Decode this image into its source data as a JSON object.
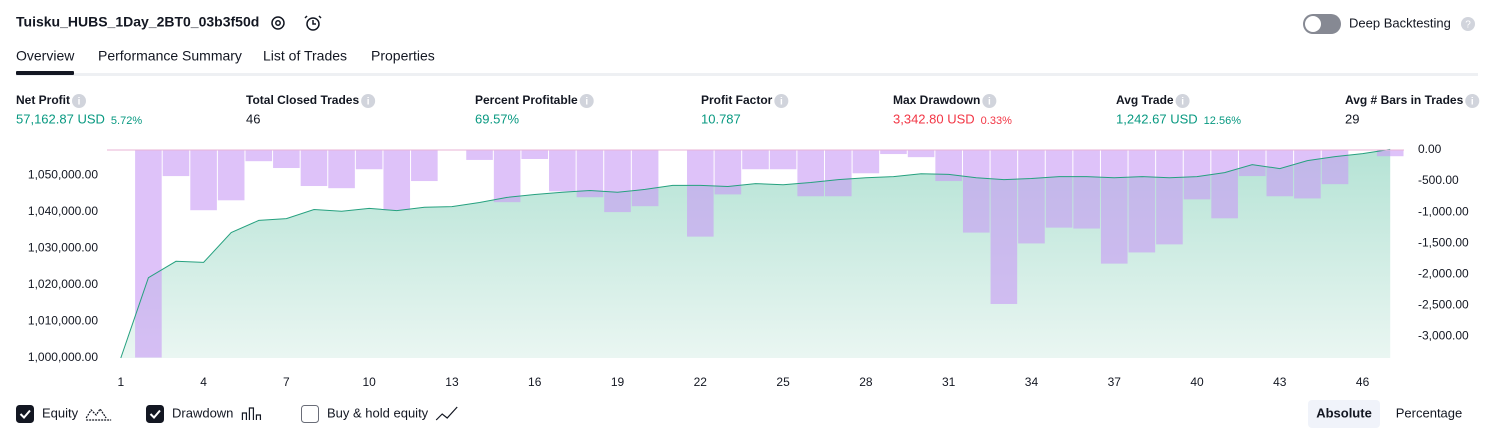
{
  "header": {
    "title": "Tuisku_HUBS_1Day_2BT0_03b3f50d",
    "toggle_label": "Deep Backtesting"
  },
  "tabs": [
    "Overview",
    "Performance Summary",
    "List of Trades",
    "Properties"
  ],
  "metrics": [
    {
      "label": "Net Profit",
      "value": "57,162.87 USD",
      "change": "5.72%",
      "tone": "positive"
    },
    {
      "label": "Total Closed Trades",
      "value": "46",
      "tone": "neutral"
    },
    {
      "label": "Percent Profitable",
      "value": "69.57%",
      "tone": "positive"
    },
    {
      "label": "Profit Factor",
      "value": "10.787",
      "tone": "positive"
    },
    {
      "label": "Max Drawdown",
      "value": "3,342.80 USD",
      "change": "0.33%",
      "tone": "negative"
    },
    {
      "label": "Avg Trade",
      "value": "1,242.67 USD",
      "change": "12.56%",
      "tone": "positive"
    },
    {
      "label": "Avg # Bars in Trades",
      "value": "29",
      "tone": "neutral"
    }
  ],
  "chart_data": {
    "type": "line",
    "x": [
      1,
      2,
      3,
      4,
      5,
      6,
      7,
      8,
      9,
      10,
      11,
      12,
      13,
      14,
      15,
      16,
      17,
      18,
      19,
      20,
      21,
      22,
      23,
      24,
      25,
      26,
      27,
      28,
      29,
      30,
      31,
      32,
      33,
      34,
      35,
      36,
      37,
      38,
      39,
      40,
      41,
      42,
      43,
      44,
      45,
      46,
      47
    ],
    "xlim": [
      0.5,
      47.5
    ],
    "xticks": [
      1,
      4,
      7,
      10,
      13,
      16,
      19,
      22,
      25,
      28,
      31,
      34,
      37,
      40,
      43,
      46
    ],
    "ylim": [
      1000000,
      1057000
    ],
    "yticks": [
      {
        "value": 1000000,
        "label": "1,000,000.00"
      },
      {
        "value": 1010000,
        "label": "1,010,000.00"
      },
      {
        "value": 1020000,
        "label": "1,020,000.00"
      },
      {
        "value": 1030000,
        "label": "1,030,000.00"
      },
      {
        "value": 1040000,
        "label": "1,040,000.00"
      },
      {
        "value": 1050000,
        "label": "1,050,000.00"
      }
    ],
    "y2lim": [
      -3350,
      0
    ],
    "y2ticks": [
      {
        "value": 0,
        "label": "0.00"
      },
      {
        "value": -500,
        "label": "-500.00"
      },
      {
        "value": -1000,
        "label": "-1,000.00"
      },
      {
        "value": -1500,
        "label": "-1,500.00"
      },
      {
        "value": -2000,
        "label": "-2,000.00"
      },
      {
        "value": -2500,
        "label": "-2,500.00"
      },
      {
        "value": -3000,
        "label": "-3,000.00"
      }
    ],
    "series": [
      {
        "name": "Equity",
        "type": "area",
        "checked": true,
        "color": "#26a17f",
        "axis": "y",
        "values": [
          1000000,
          1022000,
          1026500,
          1026200,
          1034400,
          1037700,
          1038200,
          1040700,
          1040200,
          1041000,
          1040400,
          1041300,
          1041500,
          1042600,
          1044000,
          1044800,
          1045400,
          1045900,
          1045400,
          1046200,
          1047300,
          1047300,
          1047000,
          1047800,
          1047500,
          1048100,
          1048900,
          1049400,
          1049700,
          1050500,
          1050300,
          1049400,
          1048900,
          1049200,
          1049700,
          1049700,
          1049400,
          1049700,
          1049400,
          1049700,
          1050800,
          1053000,
          1051900,
          1054100,
          1055200,
          1056000,
          1057163
        ]
      },
      {
        "name": "Drawdown",
        "type": "bar",
        "checked": true,
        "color": "#c89af5",
        "axis": "y2",
        "values": [
          0,
          -3342.8,
          -420,
          -970,
          -810,
          -180,
          -290,
          -580,
          -615,
          -310,
          -970,
          -500,
          0,
          -160,
          -840,
          -145,
          -665,
          -760,
          -1000,
          -905,
          0,
          -1395,
          -715,
          -310,
          -310,
          -745,
          -745,
          -375,
          -65,
          -115,
          -500,
          -1330,
          -2480,
          -1505,
          -1250,
          -1265,
          -1830,
          -1650,
          -1520,
          -795,
          -1100,
          -420,
          -745,
          -780,
          -550,
          0,
          -100
        ]
      }
    ],
    "extra_legend": [
      {
        "name": "Buy & hold equity",
        "checked": false
      }
    ]
  },
  "view_modes": {
    "options": [
      "Absolute",
      "Percentage"
    ],
    "selected": "Absolute"
  }
}
